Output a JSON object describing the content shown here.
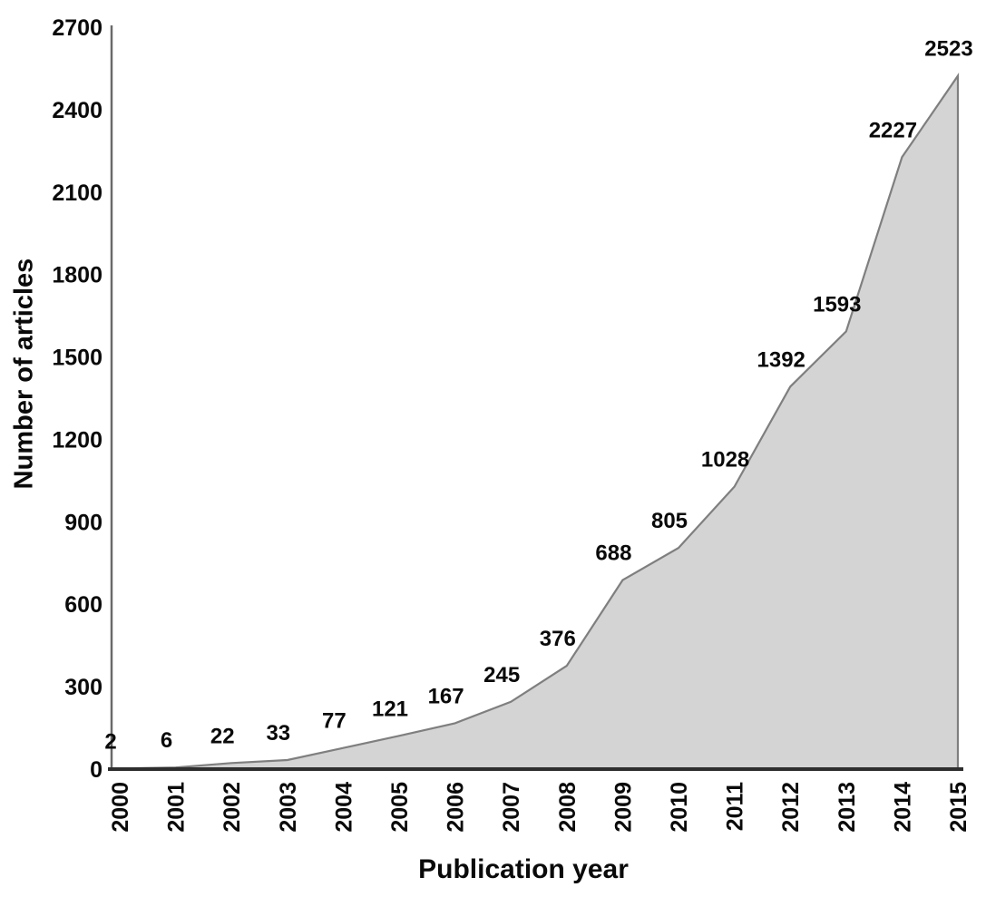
{
  "chart_data": {
    "type": "area",
    "title": "",
    "x_categories": [
      "2000",
      "2001",
      "2002",
      "2003",
      "2004",
      "2005",
      "2006",
      "2007",
      "2008",
      "2009",
      "2010",
      "2011",
      "2012",
      "2013",
      "2014",
      "2015"
    ],
    "values": [
      2,
      6,
      22,
      33,
      77,
      121,
      167,
      245,
      376,
      688,
      805,
      1028,
      1392,
      1593,
      2227,
      2523
    ],
    "xlabel": "Publication year",
    "ylabel": "Number of articles",
    "ylim": [
      0,
      2700
    ],
    "yticks": [
      0,
      300,
      600,
      900,
      1200,
      1500,
      1800,
      2100,
      2400,
      2700
    ],
    "grid": false,
    "legend_position": "none",
    "data_labels_shown": true,
    "colors": {
      "area_fill": "#d4d4d4",
      "area_line": "#7f7f7f",
      "x_axis_line": "#2e2e2e",
      "y_axis_line": "#6a6a6a",
      "text": "#0a0a0a"
    }
  }
}
